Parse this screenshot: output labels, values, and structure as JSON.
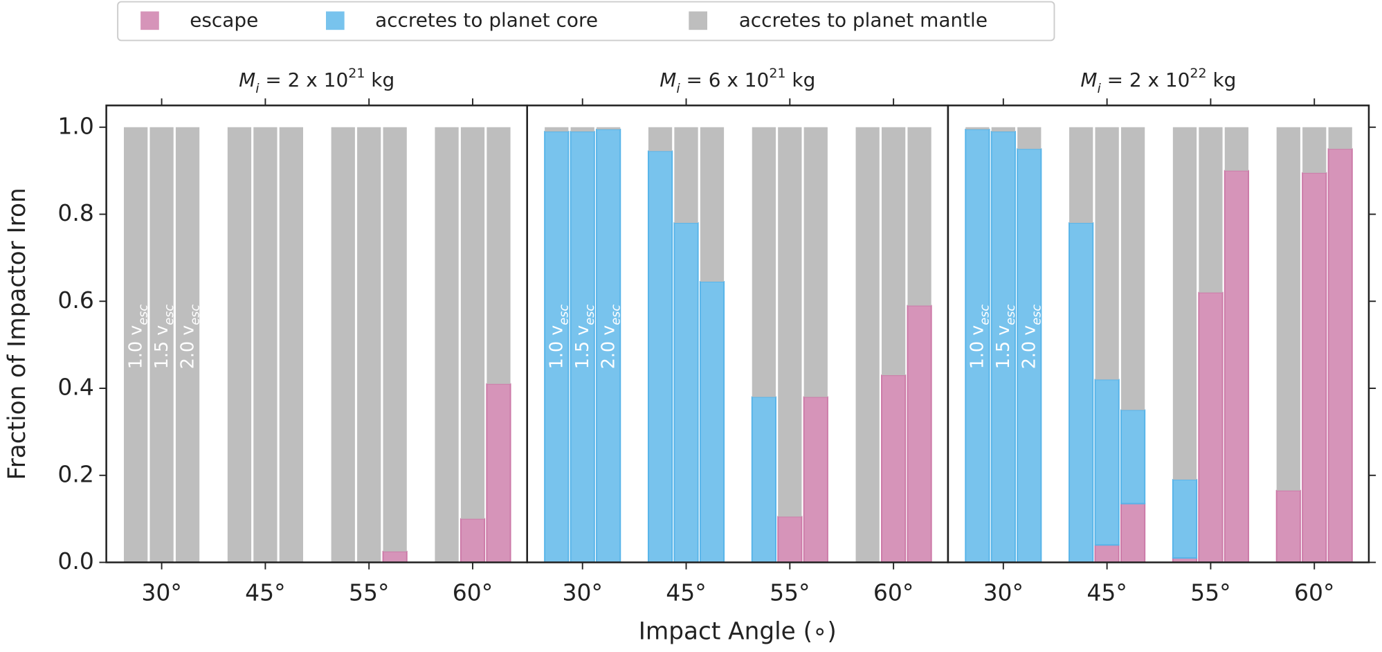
{
  "chart_data": [
    {
      "type": "bar",
      "stacked": true,
      "title": [
        "M",
        "i",
        " = 2 x 10",
        "21",
        " kg"
      ],
      "ylabel": "Fraction of Impactor Iron",
      "categories": [
        "30°",
        "45°",
        "55°",
        "60°"
      ],
      "bar_labels": [
        [
          "1.0 v",
          "esc"
        ],
        [
          "1.5 v",
          "esc"
        ],
        [
          "2.0 v",
          "esc"
        ]
      ],
      "ylim": [
        0,
        1.05
      ],
      "yticks": [
        {
          "value": 0,
          "label": "0.0"
        },
        {
          "value": 0.2,
          "label": "0.2"
        },
        {
          "value": 0.4,
          "label": "0.4"
        },
        {
          "value": 0.6,
          "label": "0.6"
        },
        {
          "value": 0.8,
          "label": "0.8"
        },
        {
          "value": 1,
          "label": "1.0"
        }
      ],
      "series": [
        {
          "name": "escape",
          "color": "#cc79a7",
          "values": [
            [
              0,
              0,
              0
            ],
            [
              0,
              0,
              0
            ],
            [
              0,
              0,
              0.025
            ],
            [
              0,
              0.1,
              0.41
            ]
          ]
        },
        {
          "name": "accretes to planet core",
          "color": "#56b4e9",
          "values": [
            [
              0,
              0,
              0
            ],
            [
              0,
              0,
              0
            ],
            [
              0,
              0,
              0
            ],
            [
              0,
              0,
              0
            ]
          ]
        },
        {
          "name": "accretes to planet mantle",
          "color": "#bebebe",
          "values": [
            [
              1,
              1,
              1
            ],
            [
              1,
              1,
              1
            ],
            [
              1,
              1,
              0.975
            ],
            [
              1,
              0.9,
              0.59
            ]
          ]
        }
      ]
    },
    {
      "type": "bar",
      "stacked": true,
      "title": [
        "M",
        "i",
        " = 6 x 10",
        "21",
        " kg"
      ],
      "xlabel": "Impact Angle (∘)",
      "categories": [
        "30°",
        "45°",
        "55°",
        "60°"
      ],
      "bar_labels": [
        [
          "1.0 v",
          "esc"
        ],
        [
          "1.5 v",
          "esc"
        ],
        [
          "2.0 v",
          "esc"
        ]
      ],
      "ylim": [
        0,
        1.05
      ],
      "series": [
        {
          "name": "escape",
          "color": "#cc79a7",
          "values": [
            [
              0,
              0,
              0
            ],
            [
              0,
              0,
              0
            ],
            [
              0,
              0.105,
              0.38
            ],
            [
              0,
              0.43,
              0.59
            ]
          ]
        },
        {
          "name": "accretes to planet core",
          "color": "#56b4e9",
          "values": [
            [
              0.99,
              0.99,
              0.995
            ],
            [
              0.945,
              0.78,
              0.645
            ],
            [
              0.38,
              0,
              0
            ],
            [
              0,
              0,
              0
            ]
          ]
        },
        {
          "name": "accretes to planet mantle",
          "color": "#bebebe",
          "values": [
            [
              0.01,
              0.01,
              0.005
            ],
            [
              0.055,
              0.22,
              0.355
            ],
            [
              0.62,
              0.895,
              0.62
            ],
            [
              1,
              0.57,
              0.41
            ]
          ]
        }
      ]
    },
    {
      "type": "bar",
      "stacked": true,
      "title": [
        "M",
        "i",
        " = 2 x 10",
        "22",
        " kg"
      ],
      "categories": [
        "30°",
        "45°",
        "55°",
        "60°"
      ],
      "bar_labels": [
        [
          "1.0 v",
          "esc"
        ],
        [
          "1.5 v",
          "esc"
        ],
        [
          "2.0 v",
          "esc"
        ]
      ],
      "ylim": [
        0,
        1.05
      ],
      "series": [
        {
          "name": "escape",
          "color": "#cc79a7",
          "values": [
            [
              0,
              0,
              0
            ],
            [
              0,
              0.04,
              0.135
            ],
            [
              0.01,
              0.62,
              0.9
            ],
            [
              0.165,
              0.895,
              0.95
            ]
          ]
        },
        {
          "name": "accretes to planet core",
          "color": "#56b4e9",
          "values": [
            [
              0.995,
              0.99,
              0.95
            ],
            [
              0.78,
              0.38,
              0.215
            ],
            [
              0.18,
              0,
              0
            ],
            [
              0,
              0,
              0
            ]
          ]
        },
        {
          "name": "accretes to planet mantle",
          "color": "#bebebe",
          "values": [
            [
              0.005,
              0.01,
              0.05
            ],
            [
              0.22,
              0.58,
              0.65
            ],
            [
              0.81,
              0.38,
              0.1
            ],
            [
              0.835,
              0.105,
              0.05
            ]
          ]
        }
      ]
    }
  ]
}
